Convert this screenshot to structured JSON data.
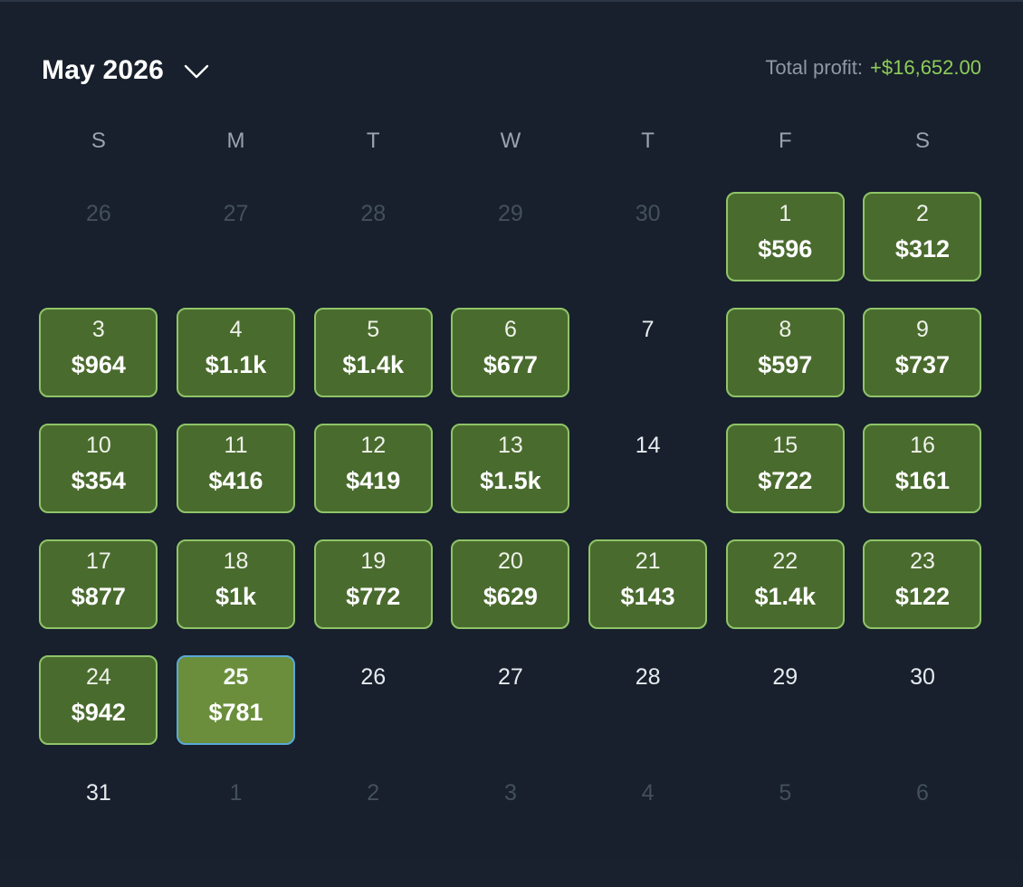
{
  "header": {
    "month_title": "May 2026",
    "profit_label": "Total profit:",
    "profit_value": "+$16,652.00"
  },
  "weekdays": [
    "S",
    "M",
    "T",
    "W",
    "T",
    "F",
    "S"
  ],
  "colors": {
    "background": "#17202c",
    "profit_fill": "#4a6b2e",
    "profit_border": "#8fc468",
    "today_fill": "#6a8e3b",
    "today_border": "#5aa8d8",
    "profit_text": "#8fcd5a"
  },
  "days": [
    {
      "day": "26",
      "amount": "",
      "state": "outside"
    },
    {
      "day": "27",
      "amount": "",
      "state": "outside"
    },
    {
      "day": "28",
      "amount": "",
      "state": "outside"
    },
    {
      "day": "29",
      "amount": "",
      "state": "outside"
    },
    {
      "day": "30",
      "amount": "",
      "state": "outside"
    },
    {
      "day": "1",
      "amount": "$596",
      "state": "profit"
    },
    {
      "day": "2",
      "amount": "$312",
      "state": "profit"
    },
    {
      "day": "3",
      "amount": "$964",
      "state": "profit"
    },
    {
      "day": "4",
      "amount": "$1.1k",
      "state": "profit"
    },
    {
      "day": "5",
      "amount": "$1.4k",
      "state": "profit"
    },
    {
      "day": "6",
      "amount": "$677",
      "state": "profit"
    },
    {
      "day": "7",
      "amount": "",
      "state": "empty"
    },
    {
      "day": "8",
      "amount": "$597",
      "state": "profit"
    },
    {
      "day": "9",
      "amount": "$737",
      "state": "profit"
    },
    {
      "day": "10",
      "amount": "$354",
      "state": "profit"
    },
    {
      "day": "11",
      "amount": "$416",
      "state": "profit"
    },
    {
      "day": "12",
      "amount": "$419",
      "state": "profit"
    },
    {
      "day": "13",
      "amount": "$1.5k",
      "state": "profit"
    },
    {
      "day": "14",
      "amount": "",
      "state": "empty"
    },
    {
      "day": "15",
      "amount": "$722",
      "state": "profit"
    },
    {
      "day": "16",
      "amount": "$161",
      "state": "profit"
    },
    {
      "day": "17",
      "amount": "$877",
      "state": "profit"
    },
    {
      "day": "18",
      "amount": "$1k",
      "state": "profit"
    },
    {
      "day": "19",
      "amount": "$772",
      "state": "profit"
    },
    {
      "day": "20",
      "amount": "$629",
      "state": "profit"
    },
    {
      "day": "21",
      "amount": "$143",
      "state": "profit"
    },
    {
      "day": "22",
      "amount": "$1.4k",
      "state": "profit"
    },
    {
      "day": "23",
      "amount": "$122",
      "state": "profit"
    },
    {
      "day": "24",
      "amount": "$942",
      "state": "profit"
    },
    {
      "day": "25",
      "amount": "$781",
      "state": "today"
    },
    {
      "day": "26",
      "amount": "",
      "state": "empty"
    },
    {
      "day": "27",
      "amount": "",
      "state": "empty"
    },
    {
      "day": "28",
      "amount": "",
      "state": "empty"
    },
    {
      "day": "29",
      "amount": "",
      "state": "empty"
    },
    {
      "day": "30",
      "amount": "",
      "state": "empty"
    },
    {
      "day": "31",
      "amount": "",
      "state": "empty"
    },
    {
      "day": "1",
      "amount": "",
      "state": "outside"
    },
    {
      "day": "2",
      "amount": "",
      "state": "outside"
    },
    {
      "day": "3",
      "amount": "",
      "state": "outside"
    },
    {
      "day": "4",
      "amount": "",
      "state": "outside"
    },
    {
      "day": "5",
      "amount": "",
      "state": "outside"
    },
    {
      "day": "6",
      "amount": "",
      "state": "outside"
    }
  ]
}
